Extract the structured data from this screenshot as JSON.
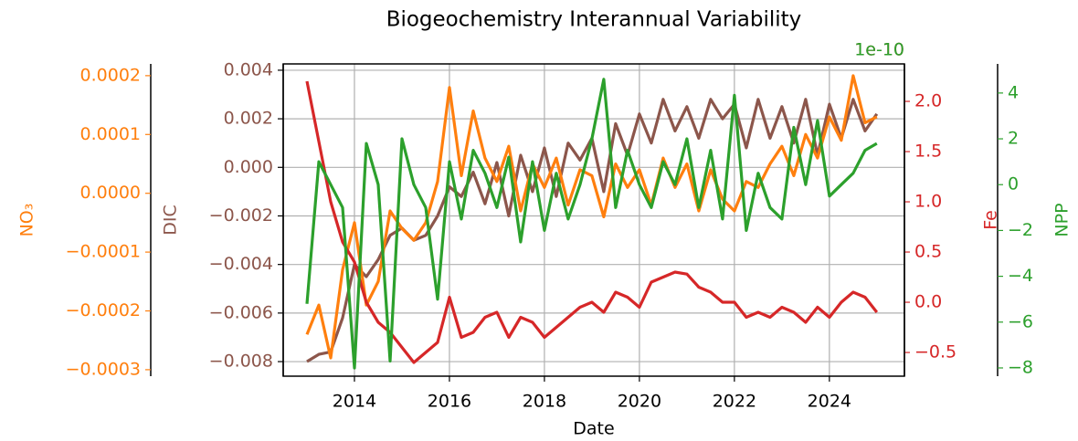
{
  "chart_data": {
    "type": "line",
    "title": "Biogeochemistry Interannual Variability",
    "x_label": "Date",
    "x": [
      2013.0,
      2013.25,
      2013.5,
      2013.75,
      2014.0,
      2014.25,
      2014.5,
      2014.75,
      2015.0,
      2015.25,
      2015.5,
      2015.75,
      2016.0,
      2016.25,
      2016.5,
      2016.75,
      2017.0,
      2017.25,
      2017.5,
      2017.75,
      2018.0,
      2018.25,
      2018.5,
      2018.75,
      2019.0,
      2019.25,
      2019.5,
      2019.75,
      2020.0,
      2020.25,
      2020.5,
      2020.75,
      2021.0,
      2021.25,
      2021.5,
      2021.75,
      2022.0,
      2022.25,
      2022.5,
      2022.75,
      2023.0,
      2023.25,
      2023.5,
      2023.75,
      2024.0,
      2024.25,
      2024.5,
      2024.75,
      2025.0
    ],
    "xlim": [
      2012.5,
      2025.58
    ],
    "xticks": [
      2014,
      2016,
      2018,
      2020,
      2022,
      2024
    ],
    "grid": true,
    "series": [
      {
        "name": "DIC",
        "color": "#8c564b",
        "axis": "y",
        "ylim": [
          -0.0086,
          0.00426
        ],
        "yticks": [
          {
            "value": -0.008,
            "label": "−0.008"
          },
          {
            "value": -0.006,
            "label": "−0.006"
          },
          {
            "value": -0.004,
            "label": "−0.004"
          },
          {
            "value": -0.002,
            "label": "−0.002"
          },
          {
            "value": 0,
            "label": "0.000"
          },
          0.002,
          0.004
        ],
        "values": [
          -0.008,
          -0.0077,
          -0.0076,
          -0.0062,
          -0.004,
          -0.0045,
          -0.0038,
          -0.0028,
          -0.0025,
          -0.003,
          -0.0028,
          -0.002,
          -0.0008,
          -0.0012,
          -0.0002,
          -0.0015,
          0.0002,
          -0.002,
          0.0005,
          -0.001,
          0.0008,
          -0.0012,
          0.001,
          0.0003,
          0.0012,
          -0.001,
          0.0018,
          0.0005,
          0.0022,
          0.001,
          0.0028,
          0.0015,
          0.0025,
          0.0012,
          0.0028,
          0.002,
          0.0026,
          0.0008,
          0.0028,
          0.0012,
          0.0025,
          0.001,
          0.0028,
          0.0005,
          0.0026,
          0.0012,
          0.0028,
          0.0015,
          0.0022
        ]
      },
      {
        "name": "NO₃",
        "color": "#ff7f0e",
        "axis": "y2",
        "ylim": [
          -0.000311,
          0.00022
        ],
        "yticks": [
          {
            "value": -0.0003,
            "label": "−0.0003"
          },
          {
            "value": -0.0002,
            "label": "−0.0002"
          },
          {
            "value": -0.0001,
            "label": "−0.0001"
          },
          {
            "value": 0,
            "label": "0.0000"
          },
          0.0001,
          0.0002
        ],
        "values": [
          -0.00024,
          -0.00019,
          -0.00028,
          -0.00013,
          -5e-05,
          -0.00019,
          -0.00015,
          -3e-05,
          -6e-05,
          -8e-05,
          -5e-05,
          2e-05,
          0.00018,
          3e-05,
          0.00014,
          6e-05,
          2e-05,
          8e-05,
          -3e-05,
          5e-05,
          1e-05,
          6e-05,
          -2e-05,
          4e-05,
          3e-05,
          -4e-05,
          5e-05,
          1e-05,
          4e-05,
          -2e-05,
          6e-05,
          1e-05,
          5e-05,
          -3e-05,
          4e-05,
          -1e-05,
          -3e-05,
          2e-05,
          1e-05,
          5e-05,
          8e-05,
          3e-05,
          0.0001,
          6e-05,
          0.00013,
          9e-05,
          0.0002,
          0.00012,
          0.00013
        ]
      },
      {
        "name": "Fe",
        "color": "#d62728",
        "axis": "y3",
        "offset_label": "1e-10",
        "ylim": [
          -0.736,
          2.373
        ],
        "yticks": [
          {
            "value": -0.5,
            "label": "−0.5"
          },
          {
            "value": 0,
            "label": "0.0"
          },
          0.5,
          {
            "value": 1,
            "label": "1.0"
          },
          1.5,
          {
            "value": 2,
            "label": "2.0"
          }
        ],
        "values": [
          2.2,
          1.6,
          1.0,
          0.6,
          0.4,
          0.0,
          -0.2,
          -0.3,
          -0.45,
          -0.6,
          -0.5,
          -0.4,
          0.05,
          -0.35,
          -0.3,
          -0.15,
          -0.1,
          -0.35,
          -0.15,
          -0.2,
          -0.35,
          -0.25,
          -0.15,
          -0.05,
          0.0,
          -0.1,
          0.1,
          0.05,
          -0.05,
          0.2,
          0.25,
          0.3,
          0.28,
          0.15,
          0.1,
          0.0,
          0.0,
          -0.15,
          -0.1,
          -0.15,
          -0.05,
          -0.1,
          -0.2,
          -0.05,
          -0.15,
          0.0,
          0.1,
          0.05,
          -0.1
        ]
      },
      {
        "name": "NPP",
        "color": "#2ca02c",
        "axis": "y4",
        "offset_label": "1e-10",
        "ylim": [
          -8.36,
          5.27
        ],
        "yticks": [
          {
            "value": -8,
            "label": "−8"
          },
          {
            "value": -6,
            "label": "−6"
          },
          {
            "value": -4,
            "label": "−4"
          },
          {
            "value": -2,
            "label": "−2"
          },
          0,
          2,
          4
        ],
        "values": [
          -5.2,
          1.0,
          0.0,
          -1.0,
          -8.0,
          1.8,
          0.0,
          -7.7,
          2.0,
          0.0,
          -1.0,
          -5.0,
          1.0,
          -1.5,
          1.5,
          0.5,
          -1.0,
          1.2,
          -2.5,
          1.0,
          -2.0,
          0.5,
          -1.5,
          0.0,
          2.0,
          4.6,
          -1.0,
          1.5,
          0.0,
          -1.0,
          1.0,
          0.0,
          2.0,
          -1.0,
          1.5,
          -1.5,
          3.9,
          -2.0,
          0.5,
          -1.0,
          -1.5,
          2.5,
          0.0,
          2.8,
          -0.5,
          0.0,
          0.5,
          1.5,
          1.8
        ]
      }
    ]
  }
}
